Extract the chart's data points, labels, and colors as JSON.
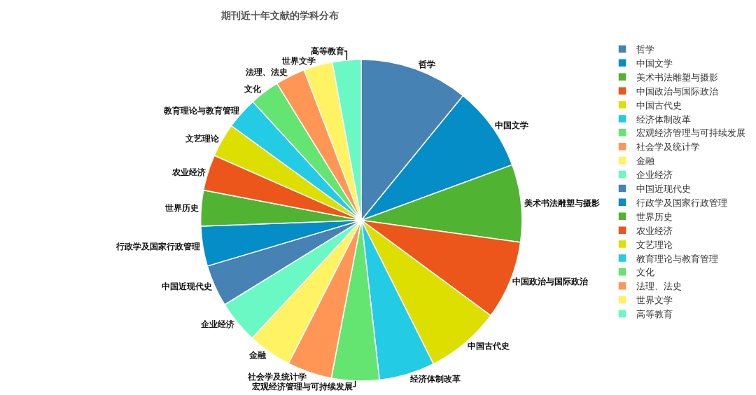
{
  "chart_data": {
    "type": "pie",
    "title": "期刊近十年文献的学科分布",
    "categories": [
      "哲学",
      "中国文学",
      "美术书法雕塑与摄影",
      "中国政治与国际政治",
      "中国古代史",
      "经济体制改革",
      "宏观经济管理与可持续发展",
      "社会学及统计学",
      "金融",
      "企业经济",
      "中国近现代史",
      "行政学及国家行政管理",
      "世界历史",
      "农业经济",
      "文艺理论",
      "教育理论与教育管理",
      "文化",
      "法理、法史",
      "世界文学",
      "高等教育"
    ],
    "values": [
      10.9,
      8.5,
      7.8,
      7.9,
      7.5,
      5.6,
      4.8,
      4.5,
      4.4,
      4.3,
      4.2,
      4.0,
      3.6,
      3.6,
      3.4,
      3.2,
      3.0,
      3.0,
      2.9,
      2.9
    ],
    "colors": [
      "#4682b4",
      "#058dc7",
      "#50b432",
      "#ed561b",
      "#dddf00",
      "#24cbe5",
      "#64e572",
      "#ff9655",
      "#fff263",
      "#6af9c4",
      "#4682b4",
      "#058dc7",
      "#50b432",
      "#ed561b",
      "#dddf00",
      "#24cbe5",
      "#64e572",
      "#ff9655",
      "#fff263",
      "#6af9c4"
    ],
    "legend": "right"
  }
}
